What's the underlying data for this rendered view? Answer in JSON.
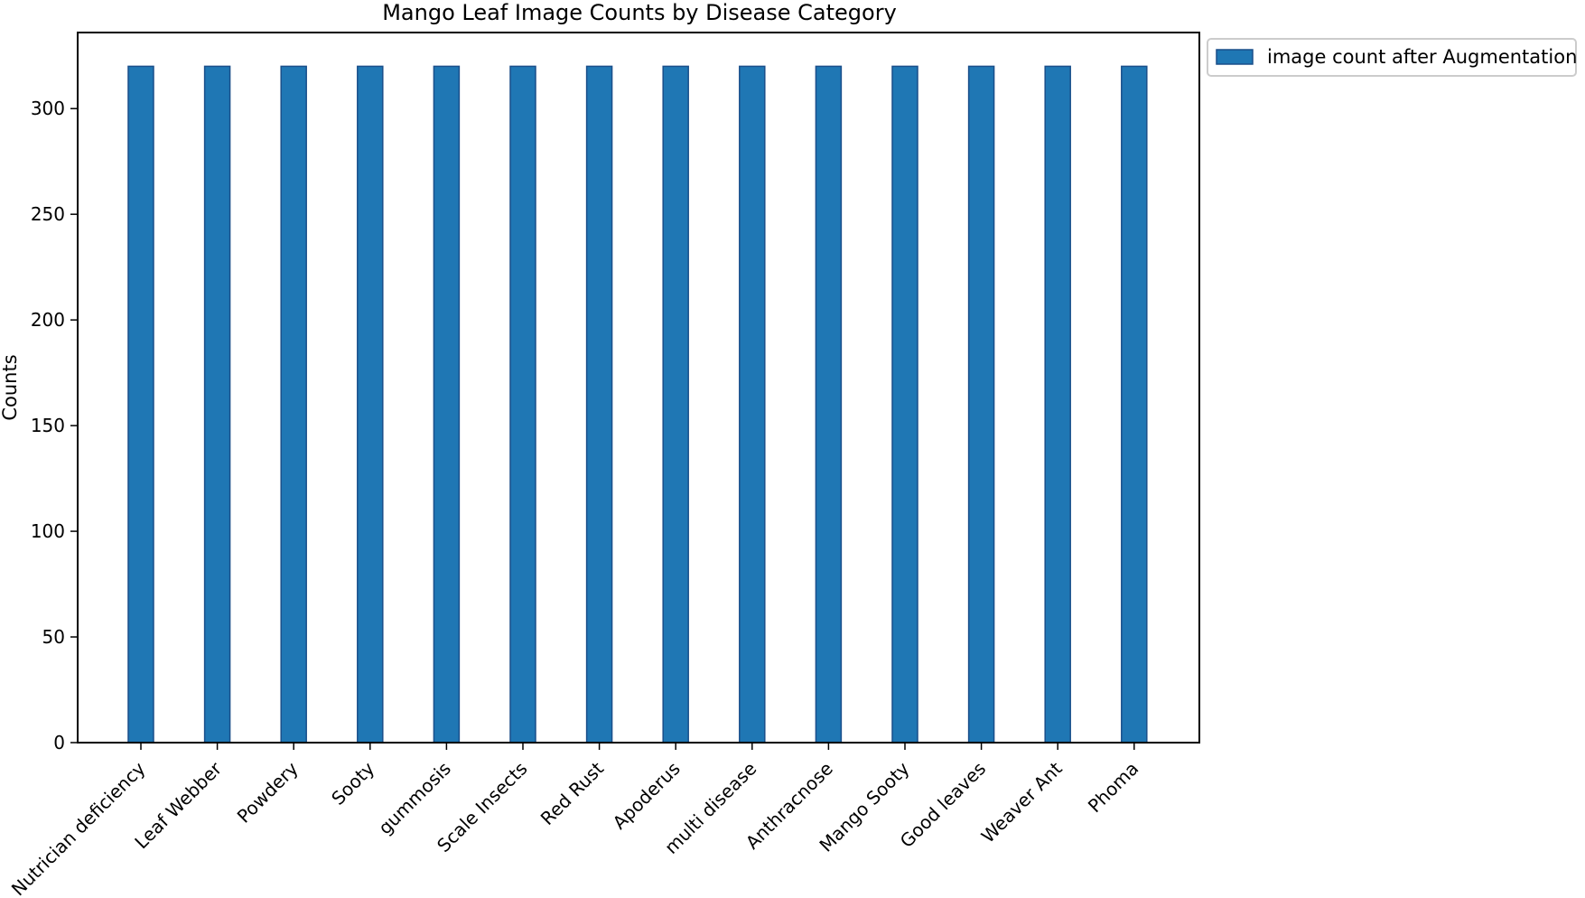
{
  "chart_data": {
    "type": "bar",
    "title": "Mango Leaf Image Counts by Disease Category",
    "xlabel": "",
    "ylabel": "Counts",
    "categories": [
      "Nutrician deficiency",
      "Leaf Webber",
      "Powdery",
      "Sooty",
      "gummosis",
      "Scale Insects",
      "Red Rust",
      "Apoderus",
      "multi disease",
      "Anthracnose",
      "Mango Sooty",
      "Good leaves",
      "Weaver Ant",
      "Phoma"
    ],
    "series": [
      {
        "name": "image count after Augmentation",
        "values": [
          320,
          320,
          320,
          320,
          320,
          320,
          320,
          320,
          320,
          320,
          320,
          320,
          320,
          320
        ],
        "color": "#1f77b4",
        "edge_color": "#1a4f8a"
      }
    ],
    "ylim": [
      0,
      336
    ],
    "yticks": [
      0,
      50,
      100,
      150,
      200,
      250,
      300
    ],
    "grid": false,
    "legend_position": "outside-top-right"
  }
}
